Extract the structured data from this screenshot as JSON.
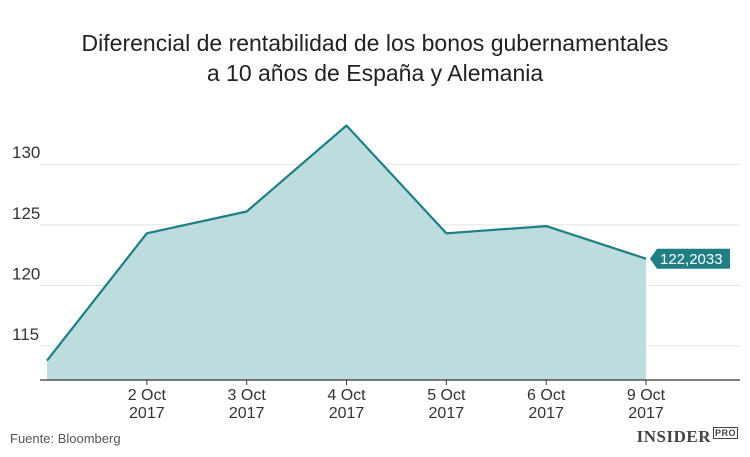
{
  "chart_data": {
    "type": "area",
    "title_lines": [
      "Diferencial de rentabilidad de los bonos gubernamentales",
      "a 10 años de España y Alemania"
    ],
    "x": [
      "",
      "2 Oct\n2017",
      "3 Oct\n2017",
      "4 Oct\n2017",
      "5 Oct\n2017",
      "6 Oct\n2017",
      "9 Oct\n2017"
    ],
    "values": [
      113.8,
      124.3,
      126.1,
      133.2,
      124.3,
      124.9,
      122.2033
    ],
    "y_ticks": [
      115,
      120,
      125,
      130
    ],
    "ylim": [
      112.2,
      135.3
    ],
    "last_value_label": "122,2033",
    "grid": true,
    "colors": {
      "line": "#1f7f84",
      "fill": "#bcdcdd",
      "label_bg": "#1f7f84",
      "label_text": "#ffffff",
      "grid": "#e4e4e4"
    }
  },
  "footer": {
    "source": "Fuente: Bloomberg",
    "brand": "INSIDER",
    "brand_badge": "PRO"
  }
}
